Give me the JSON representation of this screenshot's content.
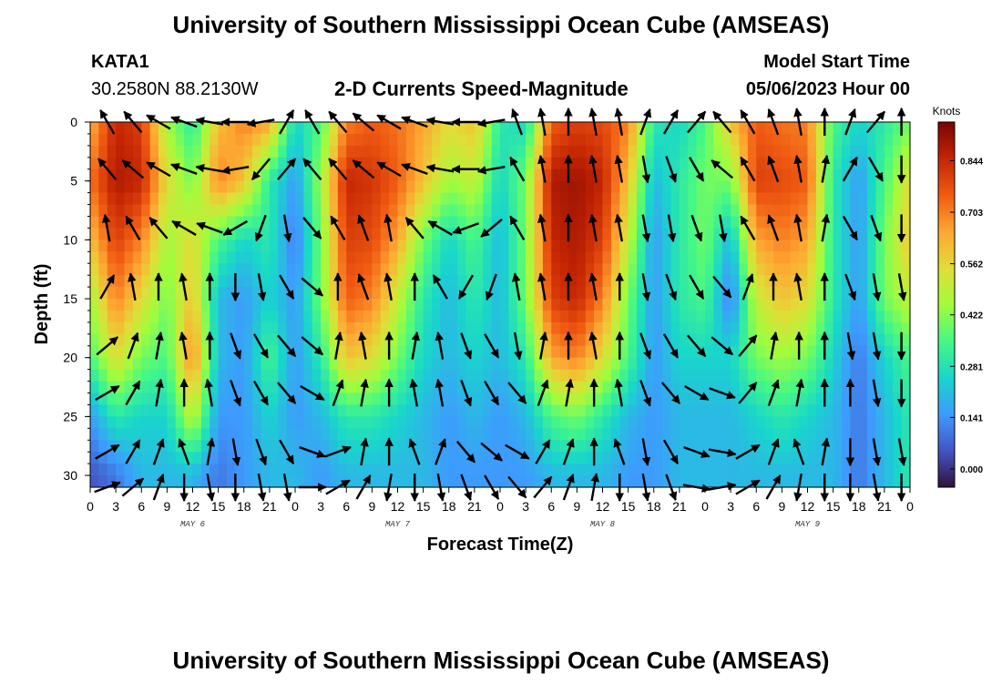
{
  "header": {
    "title": "University of Southern Mississippi Ocean Cube (AMSEAS)",
    "station": "KATA1",
    "coords": "30.2580N  88.2130W",
    "subtitle": "2-D Currents Speed-Magnitude",
    "model_start_label": "Model Start Time",
    "model_start_value": "05/06/2023 Hour 00"
  },
  "footer": {
    "title": "University of Southern Mississippi Ocean Cube (AMSEAS)"
  },
  "chart_data": {
    "type": "heatmap",
    "title": "2-D Currents Speed-Magnitude",
    "xlabel": "Forecast Time(Z)",
    "ylabel": "Depth (ft)",
    "x_tick_labels": [
      "0",
      "3",
      "6",
      "9",
      "12",
      "15",
      "18",
      "21",
      "0",
      "3",
      "6",
      "9",
      "12",
      "15",
      "18",
      "21",
      "0",
      "3",
      "6",
      "9",
      "12",
      "15",
      "18",
      "21",
      "0",
      "3",
      "6",
      "9",
      "12",
      "15",
      "18",
      "21",
      "0"
    ],
    "day_labels": [
      "MAY 6",
      "MAY 7",
      "MAY 8",
      "MAY 9"
    ],
    "y_ticks": [
      0,
      5,
      10,
      15,
      20,
      25,
      30
    ],
    "ylim": [
      31,
      0
    ],
    "xlim_hours": [
      0,
      96
    ],
    "colorbar": {
      "unit": "Knots",
      "tick_labels": [
        "0.844",
        "0.703",
        "0.562",
        "0.422",
        "0.281",
        "0.141",
        "0.000"
      ],
      "tick_values": [
        0.844,
        0.703,
        0.562,
        0.422,
        0.281,
        0.141,
        0.0
      ],
      "range": [
        -0.05,
        0.95
      ],
      "colors": [
        "#30123b",
        "#4454c4",
        "#3e9bfe",
        "#18d6cb",
        "#46f884",
        "#a2fc3c",
        "#e1dd37",
        "#fea632",
        "#f05b12",
        "#c42503",
        "#7a0403"
      ]
    },
    "speed_grid": {
      "depth_ft": [
        0,
        5,
        10,
        15,
        20,
        25,
        30
      ],
      "time_hours": [
        0,
        3,
        6,
        9,
        12,
        15,
        18,
        21,
        24,
        27,
        30,
        33,
        36,
        39,
        42,
        45,
        48,
        51,
        54,
        57,
        60,
        63,
        66,
        69,
        72,
        75,
        78,
        81,
        84,
        87,
        90,
        93,
        96
      ],
      "values": [
        [
          0.62,
          0.85,
          0.8,
          0.45,
          0.3,
          0.6,
          0.7,
          0.65,
          0.25,
          0.35,
          0.7,
          0.75,
          0.72,
          0.65,
          0.55,
          0.6,
          0.3,
          0.25,
          0.75,
          0.8,
          0.78,
          0.7,
          0.3,
          0.25,
          0.35,
          0.6,
          0.75,
          0.72,
          0.7,
          0.35,
          0.25,
          0.3,
          0.4
        ],
        [
          0.72,
          0.88,
          0.85,
          0.55,
          0.4,
          0.7,
          0.6,
          0.3,
          0.15,
          0.45,
          0.85,
          0.82,
          0.75,
          0.6,
          0.45,
          0.5,
          0.25,
          0.4,
          0.88,
          0.9,
          0.85,
          0.6,
          0.2,
          0.3,
          0.4,
          0.4,
          0.8,
          0.78,
          0.75,
          0.3,
          0.15,
          0.35,
          0.55
        ],
        [
          0.6,
          0.8,
          0.7,
          0.45,
          0.55,
          0.35,
          0.25,
          0.3,
          0.1,
          0.4,
          0.8,
          0.78,
          0.65,
          0.4,
          0.25,
          0.35,
          0.2,
          0.4,
          0.85,
          0.88,
          0.8,
          0.5,
          0.15,
          0.3,
          0.4,
          0.2,
          0.65,
          0.7,
          0.65,
          0.3,
          0.15,
          0.4,
          0.6
        ],
        [
          0.45,
          0.7,
          0.55,
          0.4,
          0.6,
          0.2,
          0.15,
          0.25,
          0.15,
          0.4,
          0.75,
          0.7,
          0.5,
          0.3,
          0.2,
          0.3,
          0.2,
          0.4,
          0.8,
          0.85,
          0.7,
          0.4,
          0.15,
          0.3,
          0.35,
          0.1,
          0.5,
          0.6,
          0.55,
          0.3,
          0.15,
          0.4,
          0.5
        ],
        [
          0.35,
          0.55,
          0.4,
          0.35,
          0.7,
          0.2,
          0.15,
          0.35,
          0.15,
          0.3,
          0.6,
          0.55,
          0.4,
          0.25,
          0.2,
          0.25,
          0.2,
          0.3,
          0.65,
          0.7,
          0.55,
          0.35,
          0.15,
          0.25,
          0.25,
          0.25,
          0.4,
          0.45,
          0.4,
          0.25,
          0.1,
          0.25,
          0.35
        ],
        [
          0.15,
          0.3,
          0.25,
          0.25,
          0.5,
          0.15,
          0.15,
          0.25,
          0.15,
          0.2,
          0.3,
          0.3,
          0.25,
          0.2,
          0.15,
          0.2,
          0.15,
          0.2,
          0.35,
          0.4,
          0.3,
          0.2,
          0.15,
          0.2,
          0.2,
          0.2,
          0.25,
          0.3,
          0.25,
          0.2,
          0.1,
          0.2,
          0.3
        ],
        [
          0.05,
          0.1,
          0.2,
          0.2,
          0.2,
          0.1,
          0.15,
          0.2,
          0.2,
          0.15,
          0.2,
          0.2,
          0.2,
          0.2,
          0.15,
          0.15,
          0.15,
          0.15,
          0.2,
          0.2,
          0.2,
          0.15,
          0.15,
          0.2,
          0.2,
          0.2,
          0.2,
          0.2,
          0.2,
          0.2,
          0.1,
          0.2,
          0.3
        ]
      ]
    },
    "direction_grid": {
      "note": "arrow heading in degrees (0 = up/north, 90 = right/east)",
      "depth_ft": [
        0,
        4,
        9,
        14,
        19,
        23,
        28,
        31
      ],
      "time_hours": [
        2,
        5,
        8,
        11,
        14,
        17,
        20,
        23,
        26,
        29,
        32,
        35,
        38,
        41,
        44,
        47,
        50,
        53,
        56,
        59,
        62,
        65,
        68,
        71,
        74,
        77,
        80,
        83,
        86,
        89,
        92,
        95
      ],
      "degrees": [
        [
          330,
          320,
          300,
          290,
          280,
          270,
          260,
          30,
          330,
          320,
          310,
          300,
          290,
          280,
          270,
          260,
          340,
          350,
          0,
          350,
          350,
          20,
          30,
          40,
          320,
          330,
          340,
          350,
          0,
          20,
          40,
          0
        ],
        [
          320,
          310,
          300,
          290,
          280,
          260,
          220,
          40,
          320,
          320,
          310,
          300,
          290,
          280,
          270,
          260,
          330,
          350,
          0,
          350,
          350,
          170,
          160,
          150,
          310,
          330,
          340,
          350,
          10,
          30,
          150,
          180
        ],
        [
          350,
          330,
          320,
          300,
          290,
          240,
          200,
          170,
          140,
          330,
          340,
          350,
          320,
          300,
          250,
          230,
          330,
          350,
          0,
          350,
          350,
          170,
          170,
          160,
          170,
          330,
          340,
          350,
          10,
          150,
          160,
          180
        ],
        [
          30,
          350,
          0,
          350,
          0,
          180,
          170,
          150,
          130,
          0,
          340,
          350,
          0,
          330,
          210,
          200,
          350,
          350,
          0,
          350,
          0,
          170,
          160,
          150,
          140,
          20,
          0,
          350,
          0,
          160,
          170,
          170
        ],
        [
          50,
          20,
          10,
          350,
          0,
          160,
          150,
          140,
          130,
          10,
          350,
          0,
          10,
          350,
          160,
          150,
          170,
          10,
          0,
          350,
          0,
          160,
          150,
          140,
          130,
          40,
          10,
          0,
          0,
          170,
          170,
          180
        ],
        [
          60,
          30,
          10,
          0,
          350,
          160,
          150,
          140,
          120,
          20,
          10,
          0,
          350,
          350,
          160,
          150,
          140,
          20,
          10,
          0,
          350,
          160,
          140,
          120,
          110,
          40,
          20,
          10,
          0,
          0,
          170,
          180
        ],
        [
          60,
          30,
          20,
          340,
          10,
          170,
          160,
          150,
          110,
          70,
          10,
          0,
          340,
          20,
          140,
          130,
          120,
          30,
          20,
          0,
          340,
          170,
          150,
          110,
          100,
          60,
          20,
          340,
          10,
          180,
          170,
          170
        ],
        [
          70,
          50,
          20,
          180,
          170,
          180,
          170,
          170,
          90,
          60,
          30,
          190,
          180,
          170,
          160,
          150,
          140,
          40,
          20,
          10,
          180,
          170,
          160,
          100,
          80,
          60,
          30,
          190,
          180,
          180,
          170,
          180
        ]
      ]
    }
  }
}
